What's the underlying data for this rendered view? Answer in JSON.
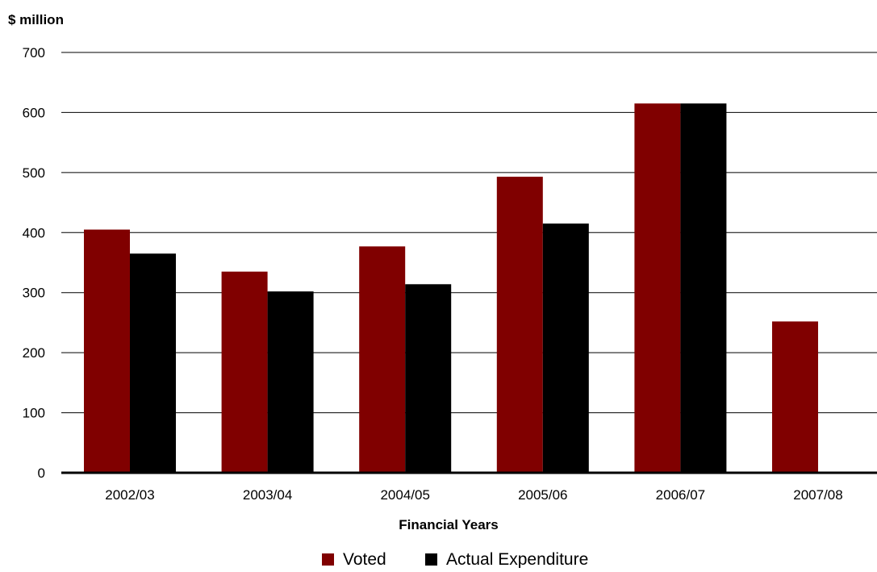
{
  "chart_data": {
    "type": "bar",
    "title": "",
    "ylabel": "$ million",
    "xlabel": "Financial Years",
    "categories": [
      "2002/03",
      "2003/04",
      "2004/05",
      "2005/06",
      "2006/07",
      "2007/08"
    ],
    "series": [
      {
        "name": "Voted",
        "values": [
          405,
          335,
          377,
          493,
          615,
          252
        ],
        "color": "#800000"
      },
      {
        "name": "Actual Expenditure",
        "values": [
          365,
          302,
          314,
          415,
          615,
          null
        ],
        "color": "#000000"
      }
    ],
    "ylim": [
      0,
      700
    ],
    "yticks": [
      0,
      100,
      200,
      300,
      400,
      500,
      600,
      700
    ],
    "ytick_labels": [
      "0",
      "100",
      "200",
      "300",
      "400",
      "500",
      "600",
      "700"
    ],
    "grid": true,
    "legend_position": "bottom"
  }
}
